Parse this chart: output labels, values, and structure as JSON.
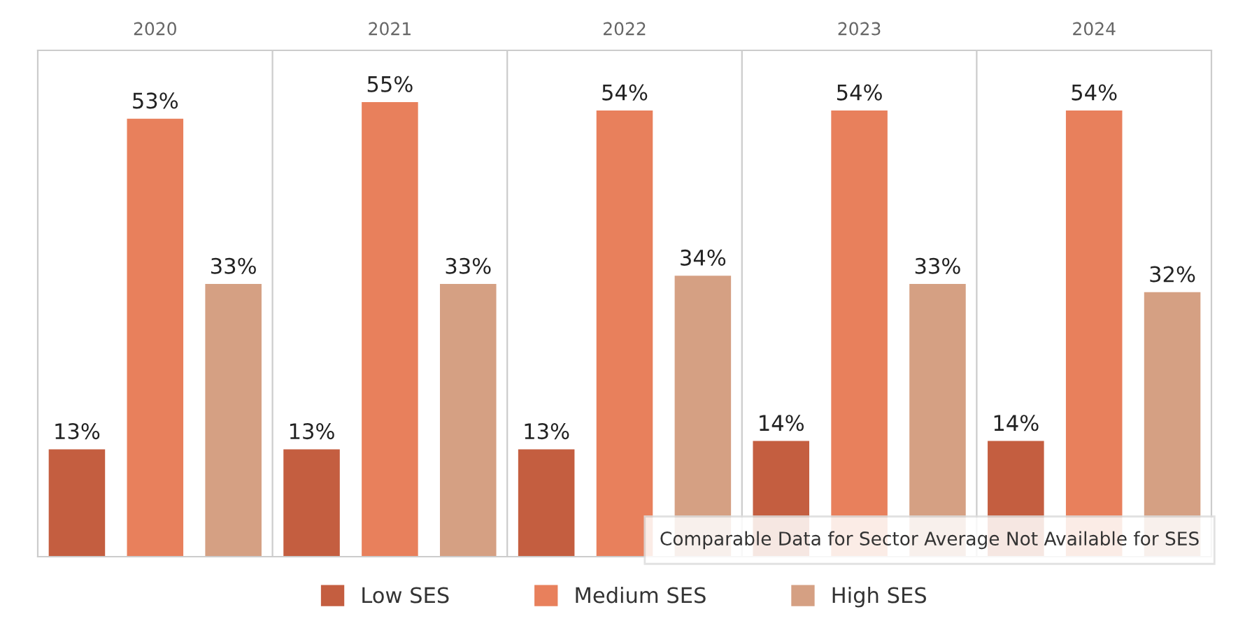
{
  "chart_data": {
    "type": "bar",
    "categories": [
      "2020",
      "2021",
      "2022",
      "2023",
      "2024"
    ],
    "series": [
      {
        "name": "Low SES",
        "color": "#c45e40",
        "values": [
          13,
          13,
          13,
          14,
          14
        ],
        "value_labels": [
          "13%",
          "13%",
          "13%",
          "14%",
          "14%"
        ]
      },
      {
        "name": "Medium SES",
        "color": "#e8805c",
        "values": [
          53,
          55,
          54,
          54,
          54
        ],
        "value_labels": [
          "53%",
          "55%",
          "54%",
          "54%",
          "54%"
        ]
      },
      {
        "name": "High SES",
        "color": "#d5a083",
        "values": [
          33,
          33,
          34,
          33,
          32
        ],
        "value_labels": [
          "33%",
          "33%",
          "34%",
          "33%",
          "32%"
        ]
      }
    ],
    "grid": false,
    "legend": "bottom",
    "annotations": [
      "Comparable Data for Sector Average Not Available for SES"
    ]
  }
}
